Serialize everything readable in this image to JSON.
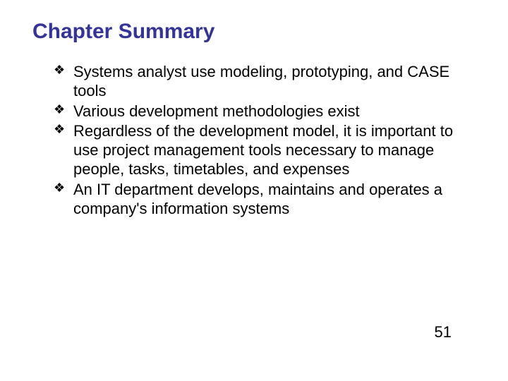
{
  "title": "Chapter Summary",
  "title_color": "#333399",
  "title_fontsize": 30,
  "text_color": "#000000",
  "body_fontsize": 22,
  "bullet_glyph": "❖",
  "bullets": [
    "Systems analyst use modeling, prototyping, and CASE tools",
    "Various development methodologies exist",
    "Regardless of the development model, it is important to use project management tools necessary to manage people, tasks, timetables, and expenses",
    "An IT department develops, maintains and operates a company's information systems"
  ],
  "page_number": "51",
  "background_color": "#ffffff",
  "slide_width": 720,
  "slide_height": 540
}
